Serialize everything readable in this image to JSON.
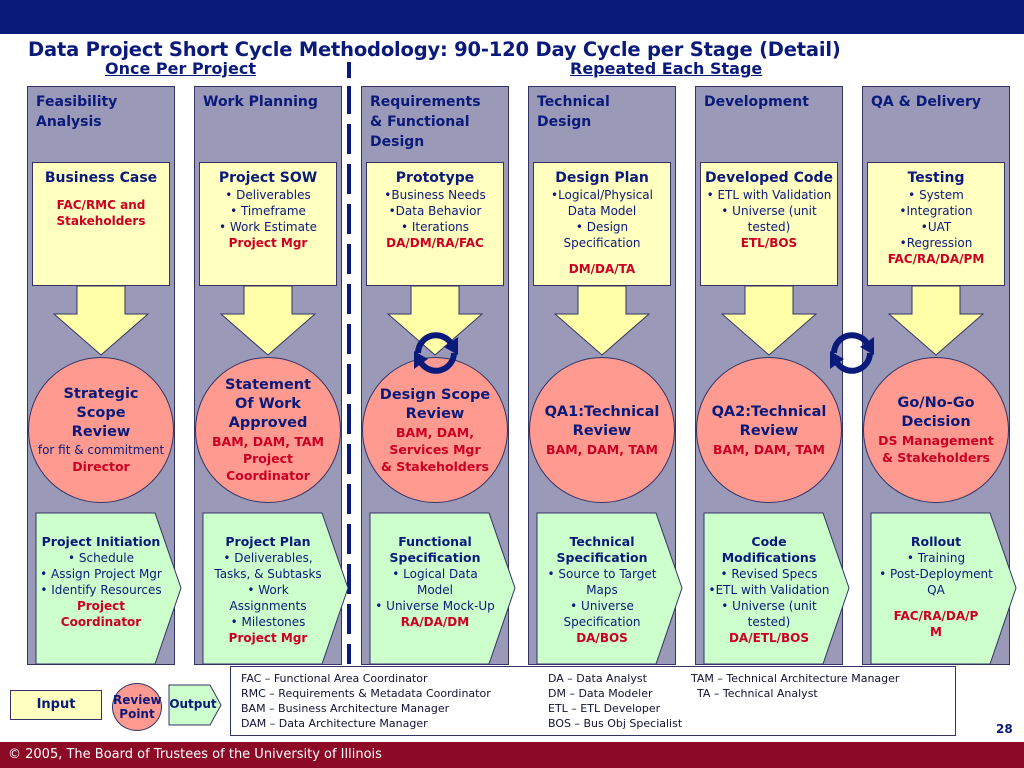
{
  "title": "Data Project Short Cycle Methodology: 90-120 Day Cycle per Stage (Detail)",
  "subtitle_left": "Once Per Project",
  "subtitle_right": "Repeated Each Stage",
  "columns": [
    {
      "title": [
        "Feasibility",
        "Analysis"
      ],
      "input": {
        "heading": "Business Case",
        "lines": [],
        "red": [
          "FAC/RMC and",
          "Stakeholders"
        ]
      },
      "review": {
        "heading": [
          "Strategic",
          "Scope",
          "Review"
        ],
        "lines": [
          "for fit & commitment"
        ],
        "red": [
          "Director"
        ]
      },
      "output": {
        "heading": [
          "Project Initiation"
        ],
        "lines": [
          "• Schedule",
          "• Assign Project Mgr",
          "• Identify Resources"
        ],
        "red": [
          "Project",
          "Coordinator"
        ]
      }
    },
    {
      "title": [
        "Work Planning"
      ],
      "input": {
        "heading": "Project SOW",
        "lines": [
          "• Deliverables",
          "• Timeframe",
          "• Work Estimate"
        ],
        "red": [
          "Project Mgr"
        ]
      },
      "review": {
        "heading": [
          "Statement",
          "Of Work",
          "Approved"
        ],
        "lines": [],
        "red": [
          "BAM, DAM, TAM",
          "Project",
          "Coordinator"
        ]
      },
      "output": {
        "heading": [
          "Project Plan"
        ],
        "lines": [
          "• Deliverables,",
          "Tasks, & Subtasks",
          "• Work",
          "Assignments",
          "• Milestones"
        ],
        "red": [
          "Project Mgr"
        ]
      }
    },
    {
      "title": [
        "Requirements",
        "& Functional",
        "Design"
      ],
      "input": {
        "heading": "Prototype",
        "lines": [
          "•Business Needs",
          "•Data Behavior",
          "• Iterations"
        ],
        "red": [
          "DA/DM/RA/FAC"
        ]
      },
      "review": {
        "heading": [
          "Design Scope",
          "Review"
        ],
        "lines": [],
        "red": [
          "BAM, DAM,",
          "Services Mgr",
          "& Stakeholders"
        ]
      },
      "output": {
        "heading": [
          "Functional",
          "Specification"
        ],
        "lines": [
          "• Logical Data",
          "Model",
          "• Universe Mock-Up"
        ],
        "red": [
          "RA/DA/DM"
        ]
      }
    },
    {
      "title": [
        "Technical",
        "Design"
      ],
      "input": {
        "heading": "Design Plan",
        "lines": [
          "•Logical/Physical",
          "Data Model",
          "• Design Specification"
        ],
        "red": [
          "DM/DA/TA"
        ]
      },
      "review": {
        "heading": [
          "QA1:Technical",
          "Review"
        ],
        "lines": [],
        "red": [
          "BAM, DAM, TAM"
        ]
      },
      "output": {
        "heading": [
          "Technical",
          "Specification"
        ],
        "lines": [
          "• Source to Target",
          "Maps",
          "• Universe",
          "Specification"
        ],
        "red": [
          "DA/BOS"
        ]
      }
    },
    {
      "title": [
        "Development"
      ],
      "input": {
        "heading": "Developed Code",
        "lines": [
          "• ETL with Validation",
          "• Universe (unit tested)"
        ],
        "red": [
          "ETL/BOS"
        ]
      },
      "review": {
        "heading": [
          "QA2:Technical",
          "Review"
        ],
        "lines": [],
        "red": [
          "BAM, DAM, TAM"
        ]
      },
      "output": {
        "heading": [
          "Code",
          "Modifications"
        ],
        "lines": [
          "• Revised Specs",
          "•ETL with Validation",
          "• Universe (unit",
          "tested)"
        ],
        "red": [
          "DA/ETL/BOS"
        ]
      }
    },
    {
      "title": [
        "QA & Delivery"
      ],
      "input": {
        "heading": "Testing",
        "lines": [
          "• System",
          "•Integration",
          "•UAT",
          "•Regression"
        ],
        "red": [
          "FAC/RA/DA/PM"
        ]
      },
      "review": {
        "heading": [
          "Go/No-Go",
          "Decision"
        ],
        "lines": [],
        "red": [
          "DS Management",
          "& Stakeholders"
        ]
      },
      "output": {
        "heading": [
          "Rollout"
        ],
        "lines": [
          "• Training",
          "• Post-Deployment",
          "QA"
        ],
        "red": [
          "FAC/RA/DA/P",
          "M"
        ]
      }
    }
  ],
  "legend": {
    "col1": [
      "FAC – Functional Area Coordinator",
      "RMC – Requirements & Metadata Coordinator",
      "BAM – Business Architecture Manager",
      "DAM – Data Architecture Manager"
    ],
    "col2": [
      "DA – Data Analyst",
      "DM – Data Modeler",
      "ETL – ETL Developer",
      "BOS – Bus Obj Specialist"
    ],
    "col3": [
      "TAM – Technical Architecture Manager",
      "TA – Technical Analyst"
    ]
  },
  "key": {
    "input": "Input",
    "review": [
      "Review",
      "Point"
    ],
    "output": "Output"
  },
  "page_number": "28",
  "footer": "© 2005, The Board of Trustees of the University of Illinois",
  "colors": {
    "navy": "#0a1a7a",
    "column_bg": "#9a9ab8",
    "input_box": "#ffffc0",
    "review_circle": "#ff9a90",
    "output_box": "#ccffcc",
    "accent_red": "#cc0022",
    "footer_bg": "#8c0a26"
  }
}
